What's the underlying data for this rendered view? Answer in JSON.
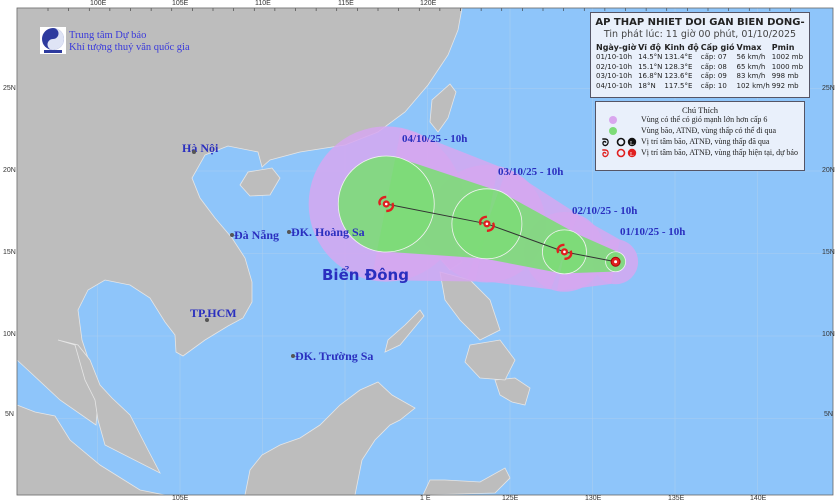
{
  "header": {
    "organization_line1": "Trung tâm Dự báo",
    "organization_line2": "Khí tượng thuỷ văn quốc gia",
    "logo_text": "NCHMF"
  },
  "info_box": {
    "title": "AP THAP NHIET DOI GAN BIEN DONG-",
    "issued": "Tin phát lúc: 11 giờ 00 phút, 01/10/2025",
    "columns": [
      "Ngày-giờ",
      "Vĩ độ",
      "Kinh độ",
      "Cấp gió",
      "Vmax",
      "Pmin"
    ],
    "rows": [
      [
        "01/10-10h",
        "14.5°N",
        "131.4°E",
        "cấp: 07",
        "56 km/h",
        "1002 mb"
      ],
      [
        "02/10-10h",
        "15.1°N",
        "128.3°E",
        "cấp: 08",
        "65 km/h",
        "1000 mb"
      ],
      [
        "03/10-10h",
        "16.8°N",
        "123.6°E",
        "cấp: 09",
        "83 km/h",
        "998 mb"
      ],
      [
        "04/10-10h",
        "18°N",
        "117.5°E",
        "cấp: 10",
        "102 km/h",
        "992 mb"
      ]
    ]
  },
  "legend": {
    "title": "Chú Thích",
    "items": [
      {
        "label": "Vùng có thể có gió mạnh lớn hơn cấp 6",
        "color": "#d9a6ee"
      },
      {
        "label": "Vùng bão, ATNĐ, vùng thấp có thể đi qua",
        "color": "#7ddc78"
      },
      {
        "label": "Vị trí tâm bão, ATNĐ, vùng thấp đã qua",
        "color": "#111111"
      },
      {
        "label": "Vị trí tâm bão, ATNĐ, vùng thấp hiện tại, dự báo",
        "color": "#e02020"
      }
    ]
  },
  "map": {
    "ocean_color": "#8ec5fa",
    "land_color": "#bdbdbd",
    "sea_label": "Biển Đông",
    "places": [
      {
        "name": "Hà Nội"
      },
      {
        "name": "Đà Nẵng"
      },
      {
        "name": "ĐK. Hoàng Sa"
      },
      {
        "name": "TP.HCM"
      },
      {
        "name": "ĐK. Trường Sa"
      }
    ],
    "lon_ticks_top": [
      "100E",
      "105E",
      "110E",
      "115E",
      "120E"
    ],
    "lon_ticks_bottom": [
      "105E",
      "1 E",
      "125E",
      "130E",
      "135E",
      "140E"
    ],
    "lat_ticks": [
      "25N",
      "20N",
      "15N",
      "10N",
      "5N"
    ]
  },
  "track": [
    {
      "label": "01/10/25 - 10h",
      "lat": 14.5,
      "lon": 131.4
    },
    {
      "label": "02/10/25 - 10h",
      "lat": 15.1,
      "lon": 128.3
    },
    {
      "label": "03/10/25 - 10h",
      "lat": 16.8,
      "lon": 123.6
    },
    {
      "label": "04/10/25 - 10h",
      "lat": 18.0,
      "lon": 117.5
    }
  ]
}
